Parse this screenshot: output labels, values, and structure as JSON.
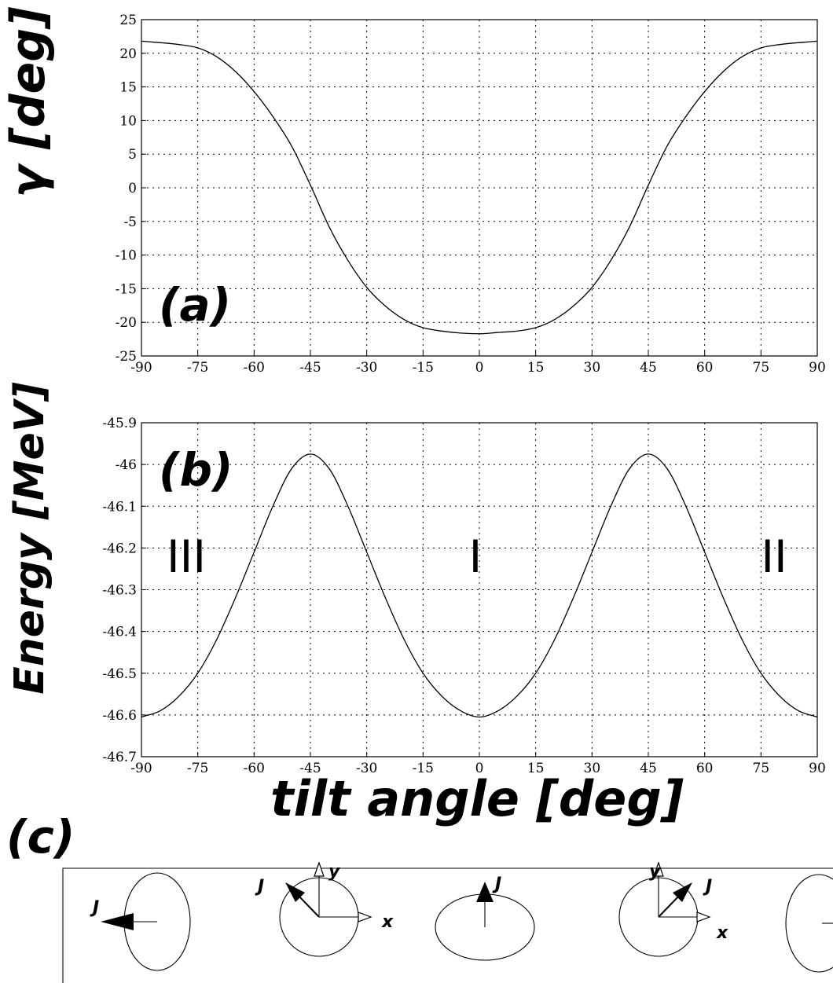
{
  "chart_data": [
    {
      "type": "line",
      "panel_label": "(a)",
      "ylabel": "γ [deg]",
      "xlabel": "",
      "xlim": [
        -90,
        90
      ],
      "ylim": [
        -25,
        25
      ],
      "xticks": [
        "-90",
        "-75",
        "-60",
        "-45",
        "-30",
        "-15",
        "0",
        "15",
        "30",
        "45",
        "60",
        "75",
        "90"
      ],
      "yticks": [
        "25",
        "20",
        "15",
        "10",
        "5",
        "0",
        "-5",
        "-10",
        "-15",
        "-20",
        "-25"
      ],
      "grid": true,
      "series": [
        {
          "x": [
            -90,
            -80,
            -75,
            -70,
            -65,
            -60,
            -55,
            -50,
            -45,
            -40,
            -35,
            -30,
            -25,
            -20,
            -15,
            -10,
            -5,
            0,
            5,
            10,
            15,
            20,
            25,
            30,
            35,
            40,
            45,
            50,
            55,
            60,
            65,
            70,
            75,
            80,
            90
          ],
          "y": [
            21.8,
            21.3,
            20.8,
            19.5,
            17.3,
            14.3,
            10.6,
            6.2,
            0.4,
            -5.8,
            -10.8,
            -14.8,
            -17.6,
            -19.6,
            -20.8,
            -21.3,
            -21.6,
            -21.7,
            -21.5,
            -21.3,
            -20.8,
            -19.6,
            -17.6,
            -14.8,
            -10.8,
            -5.8,
            0.4,
            6.2,
            10.6,
            14.3,
            17.3,
            19.5,
            20.8,
            21.3,
            21.8
          ]
        }
      ]
    },
    {
      "type": "line",
      "panel_label": "(b)",
      "ylabel": "Energy [MeV]",
      "xlabel": "tilt angle [deg]",
      "xlim": [
        -90,
        90
      ],
      "ylim": [
        -46.7,
        -45.9
      ],
      "xticks": [
        "-90",
        "-75",
        "-60",
        "-45",
        "-30",
        "-15",
        "0",
        "15",
        "30",
        "45",
        "60",
        "75",
        "90"
      ],
      "yticks": [
        "-45.9",
        "-46",
        "-46.1",
        "-46.2",
        "-46.3",
        "-46.4",
        "-46.5",
        "-46.6",
        "-46.7"
      ],
      "grid": true,
      "annotations": [
        "III",
        "I",
        "II"
      ],
      "series": [
        {
          "x": [
            -90,
            -85,
            -80,
            -75,
            -70,
            -65,
            -60,
            -55,
            -50,
            -45,
            -40,
            -35,
            -30,
            -25,
            -20,
            -15,
            -10,
            -5,
            0,
            5,
            10,
            15,
            20,
            25,
            30,
            35,
            40,
            45,
            50,
            55,
            60,
            65,
            70,
            75,
            80,
            85,
            90
          ],
          "y": [
            -46.605,
            -46.59,
            -46.555,
            -46.5,
            -46.42,
            -46.32,
            -46.21,
            -46.1,
            -46.01,
            -45.975,
            -46.01,
            -46.1,
            -46.21,
            -46.32,
            -46.42,
            -46.5,
            -46.555,
            -46.59,
            -46.605,
            -46.59,
            -46.555,
            -46.5,
            -46.42,
            -46.32,
            -46.21,
            -46.1,
            -46.01,
            -45.975,
            -46.01,
            -46.1,
            -46.21,
            -46.32,
            -46.42,
            -46.5,
            -46.555,
            -46.59,
            -46.605
          ]
        }
      ]
    }
  ],
  "panel_c": {
    "label": "(c)",
    "j_label": "J",
    "x_label": "x",
    "y_label": "y"
  }
}
